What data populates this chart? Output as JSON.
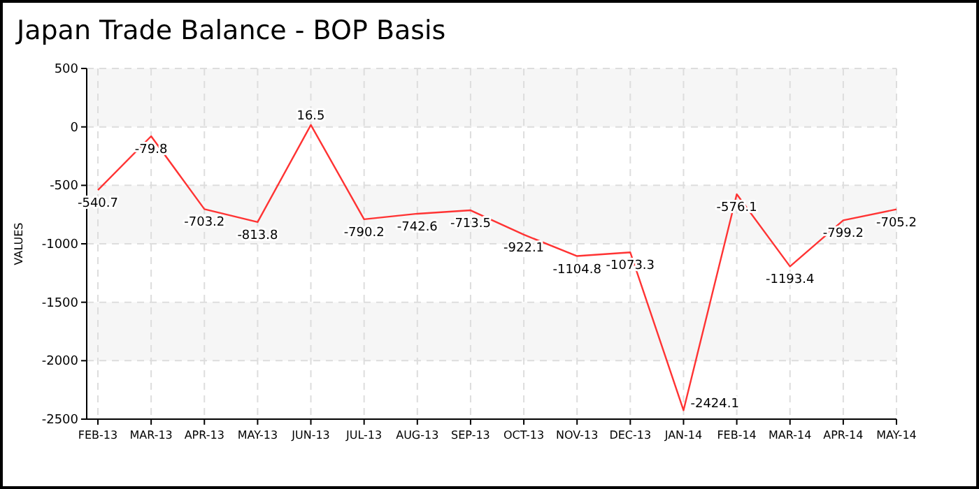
{
  "chart_data": {
    "type": "line",
    "title": "Japan Trade Balance - BOP Basis",
    "ylabel": "VALUES",
    "categories": [
      "FEB-13",
      "MAR-13",
      "APR-13",
      "MAY-13",
      "JUN-13",
      "JUL-13",
      "AUG-13",
      "SEP-13",
      "OCT-13",
      "NOV-13",
      "DEC-13",
      "JAN-14",
      "FEB-14",
      "MAR-14",
      "APR-14",
      "MAY-14"
    ],
    "series": [
      {
        "color": "#ff3333",
        "values": [
          -540.7,
          -79.8,
          -703.2,
          -813.8,
          16.5,
          -790.2,
          -742.6,
          -713.5,
          -922.1,
          -1104.8,
          -1073.3,
          -2424.1,
          -576.1,
          -1193.4,
          -799.2,
          -705.2
        ]
      }
    ],
    "ylim": [
      -2500,
      500
    ],
    "yticks": [
      -2500,
      -2000,
      -1500,
      -1000,
      -500,
      0,
      500
    ],
    "grid": true,
    "data_labels": true,
    "marker": "none",
    "line_style": "solid"
  }
}
